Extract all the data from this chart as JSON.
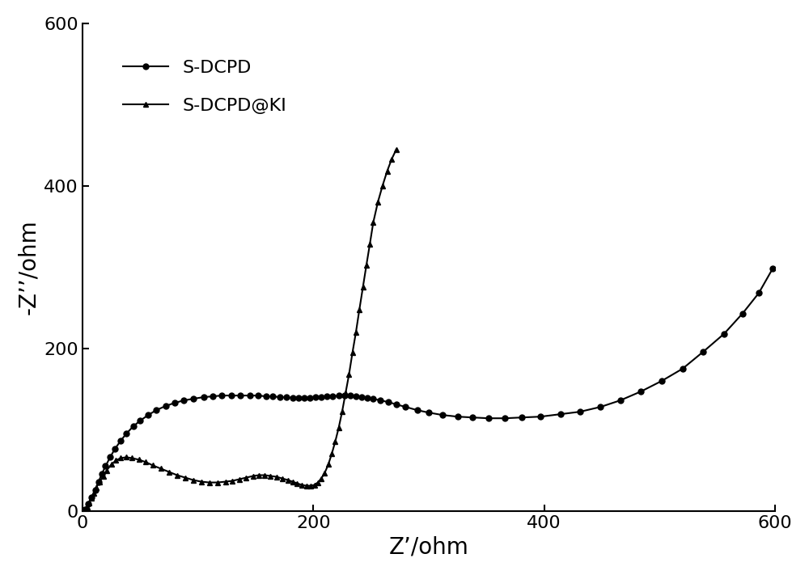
{
  "title": "",
  "xlabel": "Z’/ohm",
  "ylabel": "-Z’’/ohm",
  "xlim": [
    0,
    600
  ],
  "ylim": [
    0,
    600
  ],
  "xticks": [
    0,
    200,
    400,
    600
  ],
  "yticks": [
    0,
    200,
    400,
    600
  ],
  "line_color": "#000000",
  "background_color": "#ffffff",
  "legend_labels": [
    "S-DCPD",
    "S-DCPD@KI"
  ],
  "s_dcpd_x": [
    2,
    5,
    8,
    11,
    14,
    17,
    20,
    24,
    28,
    33,
    38,
    44,
    50,
    57,
    64,
    72,
    80,
    88,
    96,
    105,
    113,
    121,
    129,
    137,
    145,
    152,
    159,
    165,
    171,
    177,
    182,
    187,
    192,
    197,
    202,
    207,
    212,
    217,
    222,
    227,
    232,
    237,
    242,
    247,
    252,
    258,
    265,
    272,
    280,
    290,
    300,
    312,
    325,
    338,
    352,
    366,
    381,
    397,
    414,
    431,
    449,
    466,
    484,
    502,
    520,
    538,
    556,
    572,
    586,
    598
  ],
  "s_dcpd_y": [
    2,
    9,
    17,
    26,
    36,
    46,
    55,
    66,
    76,
    86,
    95,
    104,
    111,
    118,
    124,
    129,
    133,
    136,
    138,
    140,
    141,
    142,
    142,
    142,
    142,
    142,
    141,
    141,
    140,
    140,
    139,
    139,
    139,
    139,
    140,
    140,
    141,
    141,
    142,
    142,
    142,
    141,
    140,
    139,
    138,
    136,
    134,
    131,
    128,
    124,
    121,
    118,
    116,
    115,
    114,
    114,
    115,
    116,
    119,
    122,
    128,
    136,
    147,
    160,
    175,
    196,
    218,
    243,
    268,
    298
  ],
  "s_dcpd_ki_x": [
    2,
    4,
    6,
    8,
    10,
    12,
    15,
    18,
    21,
    25,
    29,
    33,
    38,
    43,
    49,
    55,
    61,
    68,
    75,
    82,
    89,
    96,
    103,
    110,
    117,
    124,
    130,
    136,
    142,
    148,
    153,
    158,
    163,
    168,
    173,
    178,
    182,
    186,
    190,
    194,
    198,
    201,
    204,
    207,
    210,
    213,
    216,
    219,
    222,
    225,
    228,
    231,
    234,
    237,
    240,
    243,
    246,
    249,
    252,
    256,
    260,
    264,
    268,
    272
  ],
  "s_dcpd_ki_y": [
    1,
    5,
    10,
    16,
    22,
    29,
    36,
    43,
    50,
    57,
    62,
    65,
    66,
    65,
    63,
    60,
    56,
    52,
    48,
    44,
    41,
    38,
    36,
    35,
    35,
    36,
    37,
    39,
    41,
    43,
    44,
    44,
    43,
    42,
    40,
    38,
    36,
    34,
    32,
    31,
    31,
    32,
    35,
    40,
    47,
    57,
    70,
    85,
    102,
    122,
    145,
    168,
    195,
    220,
    248,
    275,
    302,
    328,
    355,
    380,
    400,
    418,
    433,
    445
  ]
}
